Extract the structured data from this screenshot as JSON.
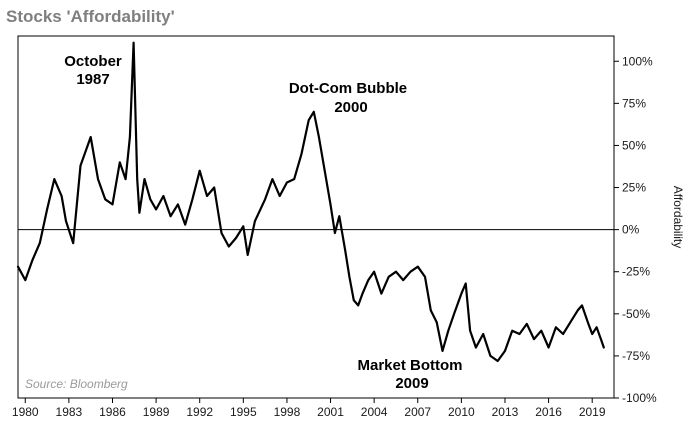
{
  "chart_data": {
    "type": "line",
    "title": "Stocks 'Affordability'",
    "xlabel": "",
    "ylabel": "Affordability",
    "xlim": [
      1979.5,
      2020.5
    ],
    "ylim": [
      -100,
      115
    ],
    "x_ticks": [
      1980,
      1983,
      1986,
      1989,
      1992,
      1995,
      1998,
      2001,
      2004,
      2007,
      2010,
      2013,
      2016,
      2019
    ],
    "x_tick_labels": [
      "1980",
      "1983",
      "1986",
      "1989",
      "1992",
      "1995",
      "1998",
      "2001",
      "2004",
      "2007",
      "2010",
      "2013",
      "2016",
      "2019"
    ],
    "y_ticks": [
      100,
      75,
      50,
      25,
      0,
      -25,
      -50,
      -75,
      -100
    ],
    "y_tick_labels": [
      "100%",
      "75%",
      "50%",
      "25%",
      "0%",
      "-25%",
      "-50%",
      "-75%",
      "-100%"
    ],
    "reference_line": 0,
    "source": "Source: Bloomberg",
    "annotations": [
      {
        "lines": [
          "October",
          "1987"
        ]
      },
      {
        "lines": [
          "Dot-Com Bubble",
          "2000"
        ]
      },
      {
        "lines": [
          "Market Bottom",
          "2009"
        ]
      }
    ],
    "series": [
      {
        "color": "#000000",
        "x": [
          1979.5,
          1980.0,
          1980.5,
          1981.0,
          1981.5,
          1982.0,
          1982.5,
          1982.8,
          1983.3,
          1983.8,
          1984.5,
          1985.0,
          1985.5,
          1986.0,
          1986.5,
          1986.9,
          1987.2,
          1987.45,
          1987.7,
          1987.85,
          1988.2,
          1988.6,
          1989.0,
          1989.5,
          1990.0,
          1990.5,
          1991.0,
          1991.5,
          1992.0,
          1992.5,
          1993.0,
          1993.5,
          1994.0,
          1994.5,
          1995.0,
          1995.3,
          1995.8,
          1996.5,
          1997.0,
          1997.5,
          1998.0,
          1998.5,
          1999.0,
          1999.5,
          1999.85,
          2000.2,
          2000.6,
          2001.0,
          2001.3,
          2001.6,
          2002.0,
          2002.3,
          2002.6,
          2002.9,
          2003.2,
          2003.6,
          2004.0,
          2004.5,
          2005.0,
          2005.5,
          2006.0,
          2006.5,
          2007.0,
          2007.5,
          2007.9,
          2008.3,
          2008.7,
          2009.1,
          2009.5,
          2010.0,
          2010.3,
          2010.6,
          2011.0,
          2011.5,
          2012.0,
          2012.5,
          2013.0,
          2013.5,
          2014.0,
          2014.5,
          2015.0,
          2015.5,
          2016.0,
          2016.5,
          2017.0,
          2017.5,
          2018.0,
          2018.3,
          2018.7,
          2019.0,
          2019.3,
          2019.6,
          2019.8
        ],
        "y": [
          -22,
          -30,
          -18,
          -8,
          12,
          30,
          20,
          5,
          -8,
          38,
          55,
          30,
          18,
          15,
          40,
          30,
          55,
          111,
          30,
          10,
          30,
          18,
          12,
          20,
          8,
          15,
          3,
          18,
          35,
          20,
          25,
          -2,
          -10,
          -5,
          2,
          -15,
          5,
          18,
          30,
          20,
          28,
          30,
          45,
          65,
          70,
          55,
          35,
          15,
          -2,
          8,
          -12,
          -28,
          -42,
          -45,
          -38,
          -30,
          -25,
          -38,
          -28,
          -25,
          -30,
          -25,
          -22,
          -28,
          -48,
          -55,
          -72,
          -60,
          -50,
          -38,
          -32,
          -60,
          -70,
          -62,
          -75,
          -78,
          -72,
          -60,
          -62,
          -56,
          -65,
          -60,
          -70,
          -58,
          -62,
          -55,
          -48,
          -45,
          -55,
          -62,
          -58,
          -65,
          -70
        ]
      }
    ]
  }
}
